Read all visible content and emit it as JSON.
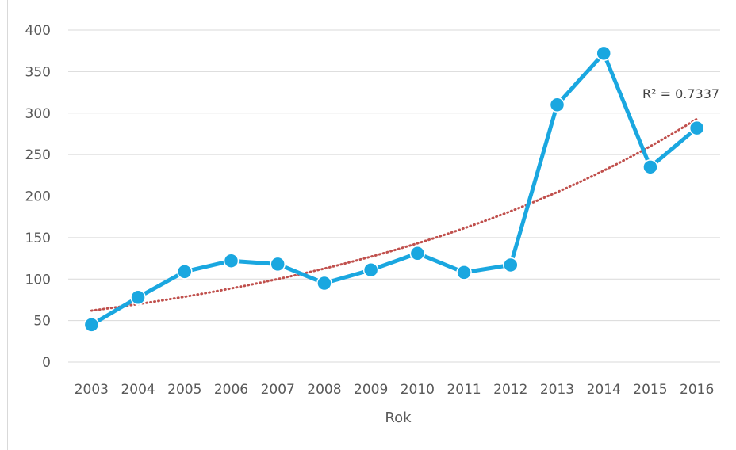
{
  "chart_data": {
    "type": "line",
    "title": "",
    "xlabel": "Rok",
    "ylabel": "",
    "categories": [
      "2003",
      "2004",
      "2005",
      "2006",
      "2007",
      "2008",
      "2009",
      "2010",
      "2011",
      "2012",
      "2013",
      "2014",
      "2015",
      "2016"
    ],
    "series": [
      {
        "values": [
          45,
          78,
          109,
          122,
          118,
          95,
          111,
          131,
          108,
          117,
          310,
          372,
          235,
          282
        ]
      }
    ],
    "trendline": {
      "type": "exponential",
      "start": 62,
      "end": 293,
      "label": "R² = 0.7337"
    },
    "ylim": [
      0,
      400
    ],
    "yticks": [
      "0",
      "50",
      "100",
      "150",
      "200",
      "250",
      "300",
      "350",
      "400"
    ],
    "grid": true,
    "legend": "none",
    "colors": {
      "series": "#1aa7e0",
      "trendline": "#c0504d",
      "grid": "#d9d9d9",
      "text": "#595959"
    }
  }
}
